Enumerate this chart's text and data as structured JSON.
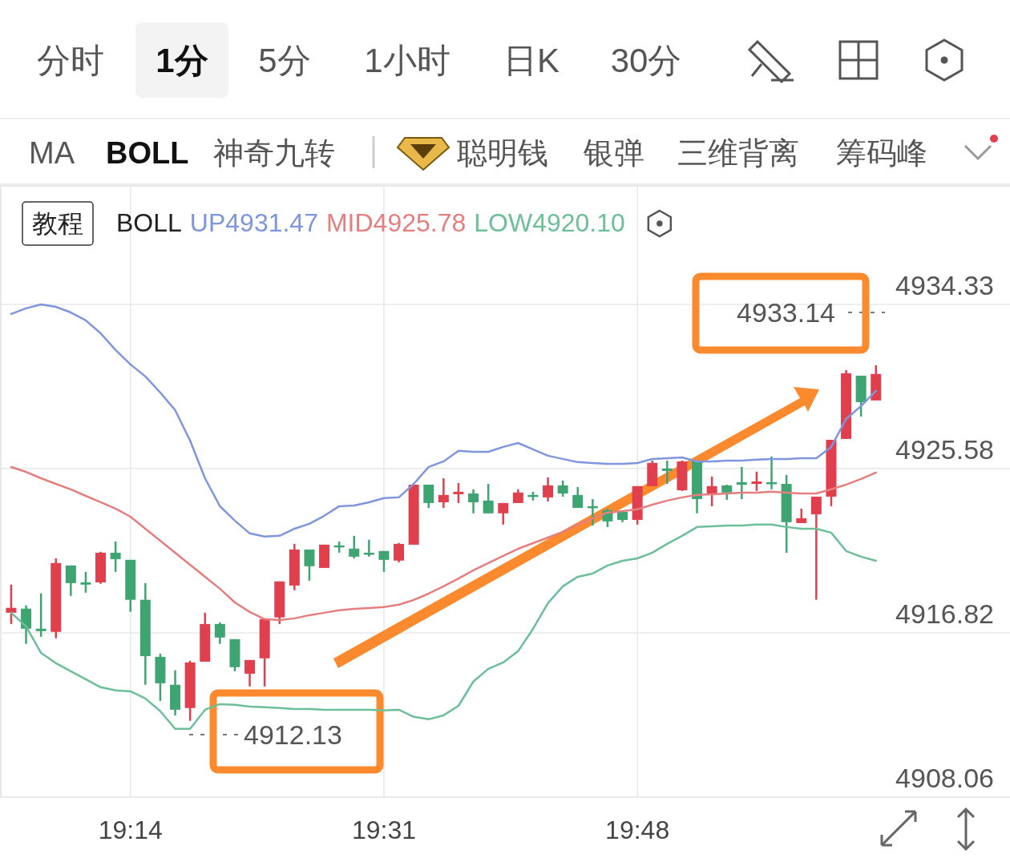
{
  "chart_data": {
    "type": "candlestick",
    "categories": [
      null,
      null,
      null,
      null,
      null,
      null,
      null,
      null,
      "19:14",
      null,
      null,
      null,
      null,
      null,
      null,
      null,
      null,
      null,
      null,
      null,
      null,
      null,
      null,
      null,
      null,
      "19:31",
      null,
      null,
      null,
      null,
      null,
      null,
      null,
      null,
      null,
      null,
      null,
      null,
      null,
      null,
      null,
      null,
      "19:48",
      null,
      null,
      null,
      null,
      null,
      null,
      null,
      null,
      null,
      null,
      null,
      null,
      null,
      null,
      null,
      null
    ],
    "ohlc": [
      [
        4917.89,
        4919.39,
        4917.29,
        4918.15
      ],
      [
        4918.11,
        4918.28,
        4916.23,
        4917.04
      ],
      [
        4917.04,
        4918.92,
        4916.61,
        4916.91
      ],
      [
        4916.87,
        4920.79,
        4916.53,
        4920.54
      ],
      [
        4920.41,
        4920.41,
        4918.79,
        4919.47
      ],
      [
        4919.51,
        4920.07,
        4918.96,
        4919.39
      ],
      [
        4919.51,
        4921.14,
        4919.43,
        4921.09
      ],
      [
        4921.09,
        4921.69,
        4920.07,
        4920.75
      ],
      [
        4920.71,
        4920.71,
        4917.94,
        4918.58
      ],
      [
        4918.58,
        4919.47,
        4914.05,
        4915.58
      ],
      [
        4915.54,
        4915.71,
        4913.19,
        4914.13
      ],
      [
        4914.05,
        4914.82,
        4912.42,
        4912.72
      ],
      [
        4912.81,
        4915.33,
        4912.13,
        4915.24
      ],
      [
        4915.28,
        4917.89,
        4915.28,
        4917.29
      ],
      [
        4917.29,
        4917.38,
        4916.23,
        4916.57
      ],
      [
        4916.48,
        4916.48,
        4914.77,
        4914.99
      ],
      [
        4914.64,
        4915.37,
        4913.96,
        4915.37
      ],
      [
        4915.46,
        4917.55,
        4913.96,
        4917.55
      ],
      [
        4917.64,
        4919.56,
        4917.29,
        4919.56
      ],
      [
        4919.34,
        4921.56,
        4919.09,
        4921.26
      ],
      [
        4921.26,
        4921.26,
        4919.6,
        4920.37
      ],
      [
        4920.28,
        4921.52,
        4920.28,
        4921.52
      ],
      [
        4921.48,
        4921.69,
        4921.09,
        4921.39
      ],
      [
        4921.31,
        4921.99,
        4920.79,
        4920.88
      ],
      [
        4921.09,
        4921.78,
        4920.88,
        4921.01
      ],
      [
        4921.18,
        4921.18,
        4920.07,
        4920.71
      ],
      [
        4920.67,
        4921.61,
        4920.58,
        4921.56
      ],
      [
        4921.52,
        4924.72,
        4921.52,
        4924.72
      ],
      [
        4924.72,
        4924.72,
        4923.48,
        4923.74
      ],
      [
        4923.78,
        4925.06,
        4923.48,
        4924.17
      ],
      [
        4924.21,
        4924.81,
        4923.74,
        4924.34
      ],
      [
        4924.25,
        4924.47,
        4923.19,
        4923.78
      ],
      [
        4923.87,
        4924.76,
        4923.19,
        4923.19
      ],
      [
        4923.19,
        4923.74,
        4922.59,
        4923.74
      ],
      [
        4923.74,
        4924.47,
        4923.74,
        4924.3
      ],
      [
        4924.17,
        4924.34,
        4923.87,
        4924.08
      ],
      [
        4924.04,
        4925.11,
        4923.83,
        4924.68
      ],
      [
        4924.68,
        4924.94,
        4924.08,
        4924.25
      ],
      [
        4924.17,
        4924.59,
        4923.48,
        4923.48
      ],
      [
        4923.57,
        4923.95,
        4922.54,
        4923.53
      ],
      [
        4923.36,
        4923.44,
        4922.46,
        4922.76
      ],
      [
        4923.27,
        4923.27,
        4922.72,
        4922.84
      ],
      [
        4922.84,
        4924.64,
        4922.59,
        4924.64
      ],
      [
        4924.64,
        4926.0,
        4924.64,
        4925.88
      ],
      [
        4925.58,
        4926.0,
        4924.76,
        4925.45
      ],
      [
        4924.42,
        4926.0,
        4924.38,
        4925.96
      ],
      [
        4925.96,
        4925.96,
        4923.19,
        4923.95
      ],
      [
        4924.25,
        4925.15,
        4923.57,
        4924.64
      ],
      [
        4924.68,
        4924.72,
        4923.91,
        4924.3
      ],
      [
        4924.85,
        4925.66,
        4923.95,
        4924.72
      ],
      [
        4924.76,
        4925.41,
        4924.38,
        4924.89
      ],
      [
        4924.85,
        4926.22,
        4924.47,
        4924.81
      ],
      [
        4924.76,
        4925.23,
        4921.09,
        4922.72
      ],
      [
        4922.67,
        4923.44,
        4922.67,
        4922.93
      ],
      [
        4923.14,
        4924.08,
        4918.58,
        4924.08
      ],
      [
        4924.08,
        4927.11,
        4923.57,
        4927.11
      ],
      [
        4927.16,
        4930.83,
        4927.16,
        4930.66
      ],
      [
        4930.53,
        4930.53,
        4928.35,
        4929.12
      ],
      [
        4929.21,
        4931.09,
        4929.21,
        4930.62
      ]
    ],
    "colors": [
      "#e0404e",
      "#3ea572",
      "#3ea572",
      "#e0404e",
      "#3ea572",
      "#3ea572",
      "#e0404e",
      "#3ea572",
      "#3ea572",
      "#3ea572",
      "#3ea572",
      "#3ea572",
      "#e0404e",
      "#e0404e",
      "#3ea572",
      "#3ea572",
      "#e0404e",
      "#e0404e",
      "#e0404e",
      "#e0404e",
      "#3ea572",
      "#e0404e",
      "#3ea572",
      "#3ea572",
      "#3ea572",
      "#3ea572",
      "#e0404e",
      "#e0404e",
      "#3ea572",
      "#e0404e",
      "#e0404e",
      "#3ea572",
      "#3ea572",
      "#e0404e",
      "#e0404e",
      "#3ea572",
      "#e0404e",
      "#3ea572",
      "#3ea572",
      "#3ea572",
      "#3ea572",
      "#3ea572",
      "#e0404e",
      "#e0404e",
      "#3ea572",
      "#e0404e",
      "#3ea572",
      "#e0404e",
      "#3ea572",
      "#3ea572",
      "#e0404e",
      "#3ea572",
      "#3ea572",
      "#e0404e",
      "#e0404e",
      "#e0404e",
      "#e0404e",
      "#3ea572",
      "#e0404e"
    ],
    "series": [
      {
        "type": "line",
        "name": "UP4931.47",
        "color": "#7f95dc",
        "values": [
          4933.82,
          4934.12,
          4934.33,
          4934.2,
          4933.9,
          4933.48,
          4932.79,
          4931.9,
          4931.13,
          4930.49,
          4929.63,
          4928.69,
          4927.07,
          4925.06,
          4923.57,
          4922.8,
          4922.12,
          4921.95,
          4921.99,
          4922.37,
          4922.63,
          4923.06,
          4923.57,
          4923.61,
          4923.78,
          4924.0,
          4924.04,
          4924.76,
          4925.66,
          4925.96,
          4926.52,
          4926.47,
          4926.47,
          4926.73,
          4926.94,
          4926.6,
          4926.26,
          4926.09,
          4925.92,
          4925.87,
          4925.83,
          4925.83,
          4925.87,
          4926.09,
          4926.13,
          4926.17,
          4925.96,
          4925.96,
          4926.0,
          4926.0,
          4926.05,
          4926.09,
          4926.09,
          4926.13,
          4926.13,
          4926.73,
          4928.22,
          4928.91,
          4929.72
        ]
      },
      {
        "type": "line",
        "name": "MID4925.78",
        "color": "#e57f7f",
        "values": [
          4925.66,
          4925.4,
          4925.06,
          4924.76,
          4924.47,
          4924.12,
          4923.78,
          4923.44,
          4923.01,
          4922.37,
          4921.73,
          4921.09,
          4920.45,
          4919.81,
          4919.17,
          4918.44,
          4917.93,
          4917.55,
          4917.5,
          4917.59,
          4917.76,
          4917.89,
          4918.02,
          4918.1,
          4918.14,
          4918.19,
          4918.32,
          4918.57,
          4918.91,
          4919.3,
          4919.72,
          4920.15,
          4920.54,
          4920.92,
          4921.3,
          4921.6,
          4921.9,
          4922.2,
          4922.59,
          4922.93,
          4923.23,
          4923.31,
          4923.4,
          4923.65,
          4923.87,
          4924.04,
          4924.17,
          4924.21,
          4924.25,
          4924.29,
          4924.29,
          4924.34,
          4924.29,
          4924.25,
          4924.25,
          4924.47,
          4924.72,
          4925.02,
          4925.36
        ]
      },
      {
        "type": "line",
        "name": "LOW4920.10",
        "color": "#6cbf98",
        "values": [
          4917.89,
          4917.16,
          4915.75,
          4915.2,
          4914.77,
          4914.34,
          4913.92,
          4913.75,
          4913.7,
          4913.32,
          4912.64,
          4911.7,
          4911.7,
          4912.72,
          4913.02,
          4912.98,
          4912.89,
          4912.85,
          4912.81,
          4912.76,
          4912.76,
          4912.72,
          4912.72,
          4912.72,
          4912.72,
          4912.68,
          4912.72,
          4912.34,
          4912.21,
          4912.42,
          4912.93,
          4914.22,
          4914.9,
          4915.24,
          4915.84,
          4917.03,
          4918.4,
          4919.3,
          4919.81,
          4919.98,
          4920.41,
          4920.66,
          4920.79,
          4921.09,
          4921.56,
          4921.99,
          4922.46,
          4922.5,
          4922.54,
          4922.54,
          4922.59,
          4922.59,
          4922.46,
          4922.37,
          4922.37,
          4922.16,
          4921.18,
          4920.88,
          4920.66
        ]
      }
    ],
    "legend_title": "BOLL",
    "legend": "top left",
    "ylim": [
      4908.06,
      4940.65
    ],
    "yticks": [
      4908.06,
      4916.82,
      4925.58,
      4934.33
    ],
    "grid": true,
    "annotations": [
      "分时",
      "1分",
      "5分",
      "1小时",
      "日K",
      "30分",
      "MA",
      "BOLL",
      "神奇九转",
      "聪明钱",
      "银弹",
      "三维背离",
      "筹码峰",
      "教程",
      "4933.14",
      "4912.13"
    ]
  }
}
